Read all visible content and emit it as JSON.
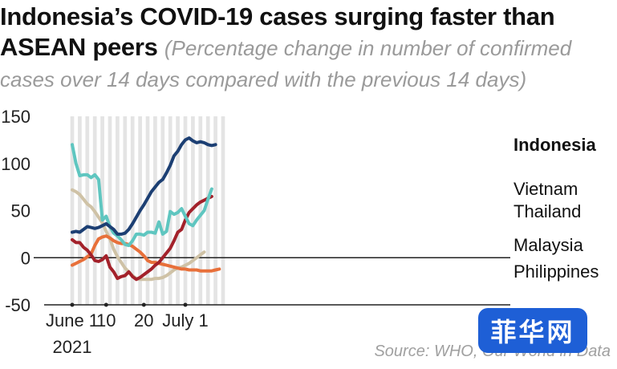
{
  "header": {
    "title_part1": "Indonesia’s COVID-19 cases surging faster than",
    "title_part2": "ASEAN peers",
    "subtitle_part1": "(Percentage change in number of confirmed",
    "subtitle_part2": "cases over 14 days compared with the previous 14 days)"
  },
  "footer": {
    "source": "Source: WHO, Our World in Data",
    "watermark": "菲华网"
  },
  "colors": {
    "Indonesia": "#1c3f73",
    "Vietnam": "#5fc6c0",
    "Thailand": "#a3212a",
    "Malaysia": "#cfc2a6",
    "Philippines": "#e8703a",
    "stripe": "#e4e4e4",
    "axis": "#222222"
  },
  "chart_data": {
    "type": "line",
    "x": [
      1,
      2,
      3,
      4,
      5,
      6,
      7,
      8,
      9,
      10,
      11,
      12,
      13,
      14,
      15,
      16,
      17,
      18,
      19,
      20,
      21,
      22,
      23,
      24,
      25,
      26,
      27,
      28,
      29,
      30,
      31,
      32,
      33,
      34,
      35,
      36,
      37,
      38,
      39,
      40,
      41,
      42
    ],
    "x_unit_note": "day index from June 1 2021 (1 = June 1, 31 = July 1)",
    "xticks": [
      {
        "x": 1,
        "label": "June 1",
        "label2": "2021"
      },
      {
        "x": 10,
        "label": "10",
        "label2": ""
      },
      {
        "x": 20,
        "label": "20",
        "label2": ""
      },
      {
        "x": 31,
        "label": "July 1",
        "label2": ""
      }
    ],
    "ylim": [
      -50,
      150
    ],
    "yticks": [
      150,
      100,
      50,
      0,
      -50
    ],
    "grid": false,
    "stripes": "alternating vertical day bands",
    "series": [
      {
        "name": "Indonesia",
        "values": [
          27,
          28,
          27,
          30,
          33,
          32,
          31,
          32,
          34,
          36,
          33,
          30,
          25,
          25,
          26,
          30,
          36,
          43,
          50,
          56,
          63,
          70,
          75,
          80,
          83,
          90,
          98,
          108,
          113,
          120,
          125,
          127,
          124,
          122,
          123,
          122,
          120,
          119,
          120,
          null,
          null,
          null
        ]
      },
      {
        "name": "Vietnam",
        "values": [
          120,
          100,
          87,
          88,
          88,
          85,
          88,
          83,
          40,
          44,
          33,
          26,
          23,
          19,
          14,
          13,
          18,
          25,
          25,
          24,
          27,
          27,
          26,
          38,
          25,
          28,
          49,
          46,
          48,
          52,
          44,
          36,
          34,
          40,
          45,
          50,
          62,
          73,
          null,
          null,
          null,
          null
        ]
      },
      {
        "name": "Thailand",
        "values": [
          19,
          16,
          16,
          11,
          8,
          3,
          -3,
          -4,
          -2,
          2,
          -10,
          -15,
          -22,
          -20,
          -19,
          -15,
          -20,
          -23,
          -21,
          -18,
          -15,
          -12,
          -8,
          -5,
          0,
          5,
          10,
          18,
          27,
          30,
          40,
          48,
          52,
          56,
          59,
          61,
          63,
          65,
          null,
          null,
          null,
          null
        ]
      },
      {
        "name": "Malaysia",
        "values": [
          72,
          70,
          67,
          62,
          57,
          54,
          49,
          43,
          37,
          28,
          20,
          9,
          1,
          -5,
          -11,
          -15,
          -19,
          -22,
          -23,
          -23,
          -23,
          -23,
          -22,
          -22,
          -21,
          -19,
          -16,
          -13,
          -11,
          -10,
          -8,
          -6,
          -3,
          0,
          3,
          6,
          null,
          null,
          null,
          null,
          null,
          null
        ]
      },
      {
        "name": "Philippines",
        "values": [
          -8,
          -6,
          -4,
          -2,
          1,
          4,
          13,
          20,
          22,
          23,
          21,
          18,
          16,
          15,
          15,
          14,
          12,
          9,
          6,
          2,
          -3,
          -5,
          -5,
          -6,
          -7,
          -8,
          -9,
          -10,
          -11,
          -12,
          -12,
          -13,
          -13,
          -13,
          -14,
          -14,
          -14,
          -14,
          -13,
          -12,
          null,
          null
        ]
      }
    ],
    "legend": "labels at right end of lines"
  }
}
